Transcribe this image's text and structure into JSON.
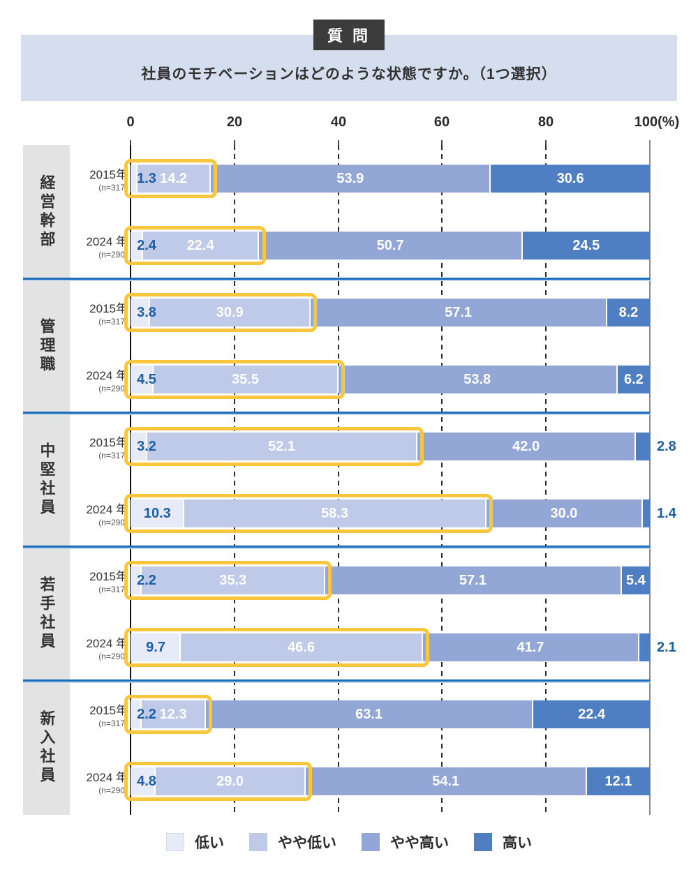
{
  "header": {
    "badge": "質 問",
    "question": "社員のモチベーションはどのような状態ですか。（1つ選択）"
  },
  "axis": {
    "ticks": [
      "0",
      "20",
      "40",
      "60",
      "80"
    ],
    "last_label": "100(%)",
    "min": 0,
    "max": 100,
    "step": 20
  },
  "legend": {
    "items": [
      {
        "label": "低い"
      },
      {
        "label": "やや低い"
      },
      {
        "label": "やや高い"
      },
      {
        "label": "高い"
      }
    ]
  },
  "colors": {
    "low": "#e7ebf7",
    "somewhat_low": "#bfc9e8",
    "somewhat_high": "#93a7d6",
    "high": "#4f7fc2",
    "highlight_ring": "#f8c73e",
    "value_blue": "#1c5da8",
    "divider": "#1b6db9",
    "divider_shadow": "#bcd4ee",
    "category_bg": "#e3e3e3",
    "banner_bg": "#d5deef",
    "badge_bg": "#3c3c3c",
    "swatch_dash_border": "#c9d2ea"
  },
  "chart_data": {
    "type": "bar",
    "stacked": true,
    "orientation": "horizontal",
    "unit": "%",
    "xlim": [
      0,
      100
    ],
    "grid": "dashed vertical lines every 20%",
    "legend_position": "bottom",
    "title": "社員のモチベーションはどのような状態ですか。（1つ選択）",
    "series_names": [
      "低い",
      "やや低い",
      "やや高い",
      "高い"
    ],
    "highlight_note": "低い＋やや低い segments outlined with yellow ring",
    "groups": [
      {
        "category": "経営幹部",
        "rows": [
          {
            "year": "2015年",
            "n": "(n=317)",
            "values": [
              1.3,
              14.2,
              53.9,
              30.6
            ],
            "labels": [
              "1.3",
              "14.2",
              "53.9",
              "30.6"
            ]
          },
          {
            "year": "2024 年",
            "n": "(n=290)",
            "values": [
              2.4,
              22.4,
              50.7,
              24.5
            ],
            "labels": [
              "2.4",
              "22.4",
              "50.7",
              "24.5"
            ]
          }
        ]
      },
      {
        "category": "管理職",
        "rows": [
          {
            "year": "2015年",
            "n": "(n=317)",
            "values": [
              3.8,
              30.9,
              57.1,
              8.2
            ],
            "labels": [
              "3.8",
              "30.9",
              "57.1",
              "8.2"
            ]
          },
          {
            "year": "2024 年",
            "n": "(n=290)",
            "values": [
              4.5,
              35.5,
              53.8,
              6.2
            ],
            "labels": [
              "4.5",
              "35.5",
              "53.8",
              "6.2"
            ]
          }
        ]
      },
      {
        "category": "中堅社員",
        "rows": [
          {
            "year": "2015年",
            "n": "(n=317)",
            "values": [
              3.2,
              52.1,
              42.0,
              2.8
            ],
            "labels": [
              "3.2",
              "52.1",
              "42.0",
              "2.8"
            ]
          },
          {
            "year": "2024 年",
            "n": "(n=290)",
            "values": [
              10.3,
              58.3,
              30.0,
              1.4
            ],
            "labels": [
              "10.3",
              "58.3",
              "30.0",
              "1.4"
            ]
          }
        ]
      },
      {
        "category": "若手社員",
        "rows": [
          {
            "year": "2015年",
            "n": "(n=317)",
            "values": [
              2.2,
              35.3,
              57.1,
              5.4
            ],
            "labels": [
              "2.2",
              "35.3",
              "57.1",
              "5.4"
            ]
          },
          {
            "year": "2024 年",
            "n": "(n=290)",
            "values": [
              9.7,
              46.6,
              41.7,
              2.1
            ],
            "labels": [
              "9.7",
              "46.6",
              "41.7",
              "2.1"
            ]
          }
        ]
      },
      {
        "category": "新入社員",
        "rows": [
          {
            "year": "2015年",
            "n": "(n=317)",
            "values": [
              2.2,
              12.3,
              63.1,
              22.4
            ],
            "labels": [
              "2.2",
              "12.3",
              "63.1",
              "22.4"
            ]
          },
          {
            "year": "2024 年",
            "n": "(n=290)",
            "values": [
              4.8,
              29.0,
              54.1,
              12.1
            ],
            "labels": [
              "4.8",
              "29.0",
              "54.1",
              "12.1"
            ]
          }
        ]
      }
    ]
  }
}
